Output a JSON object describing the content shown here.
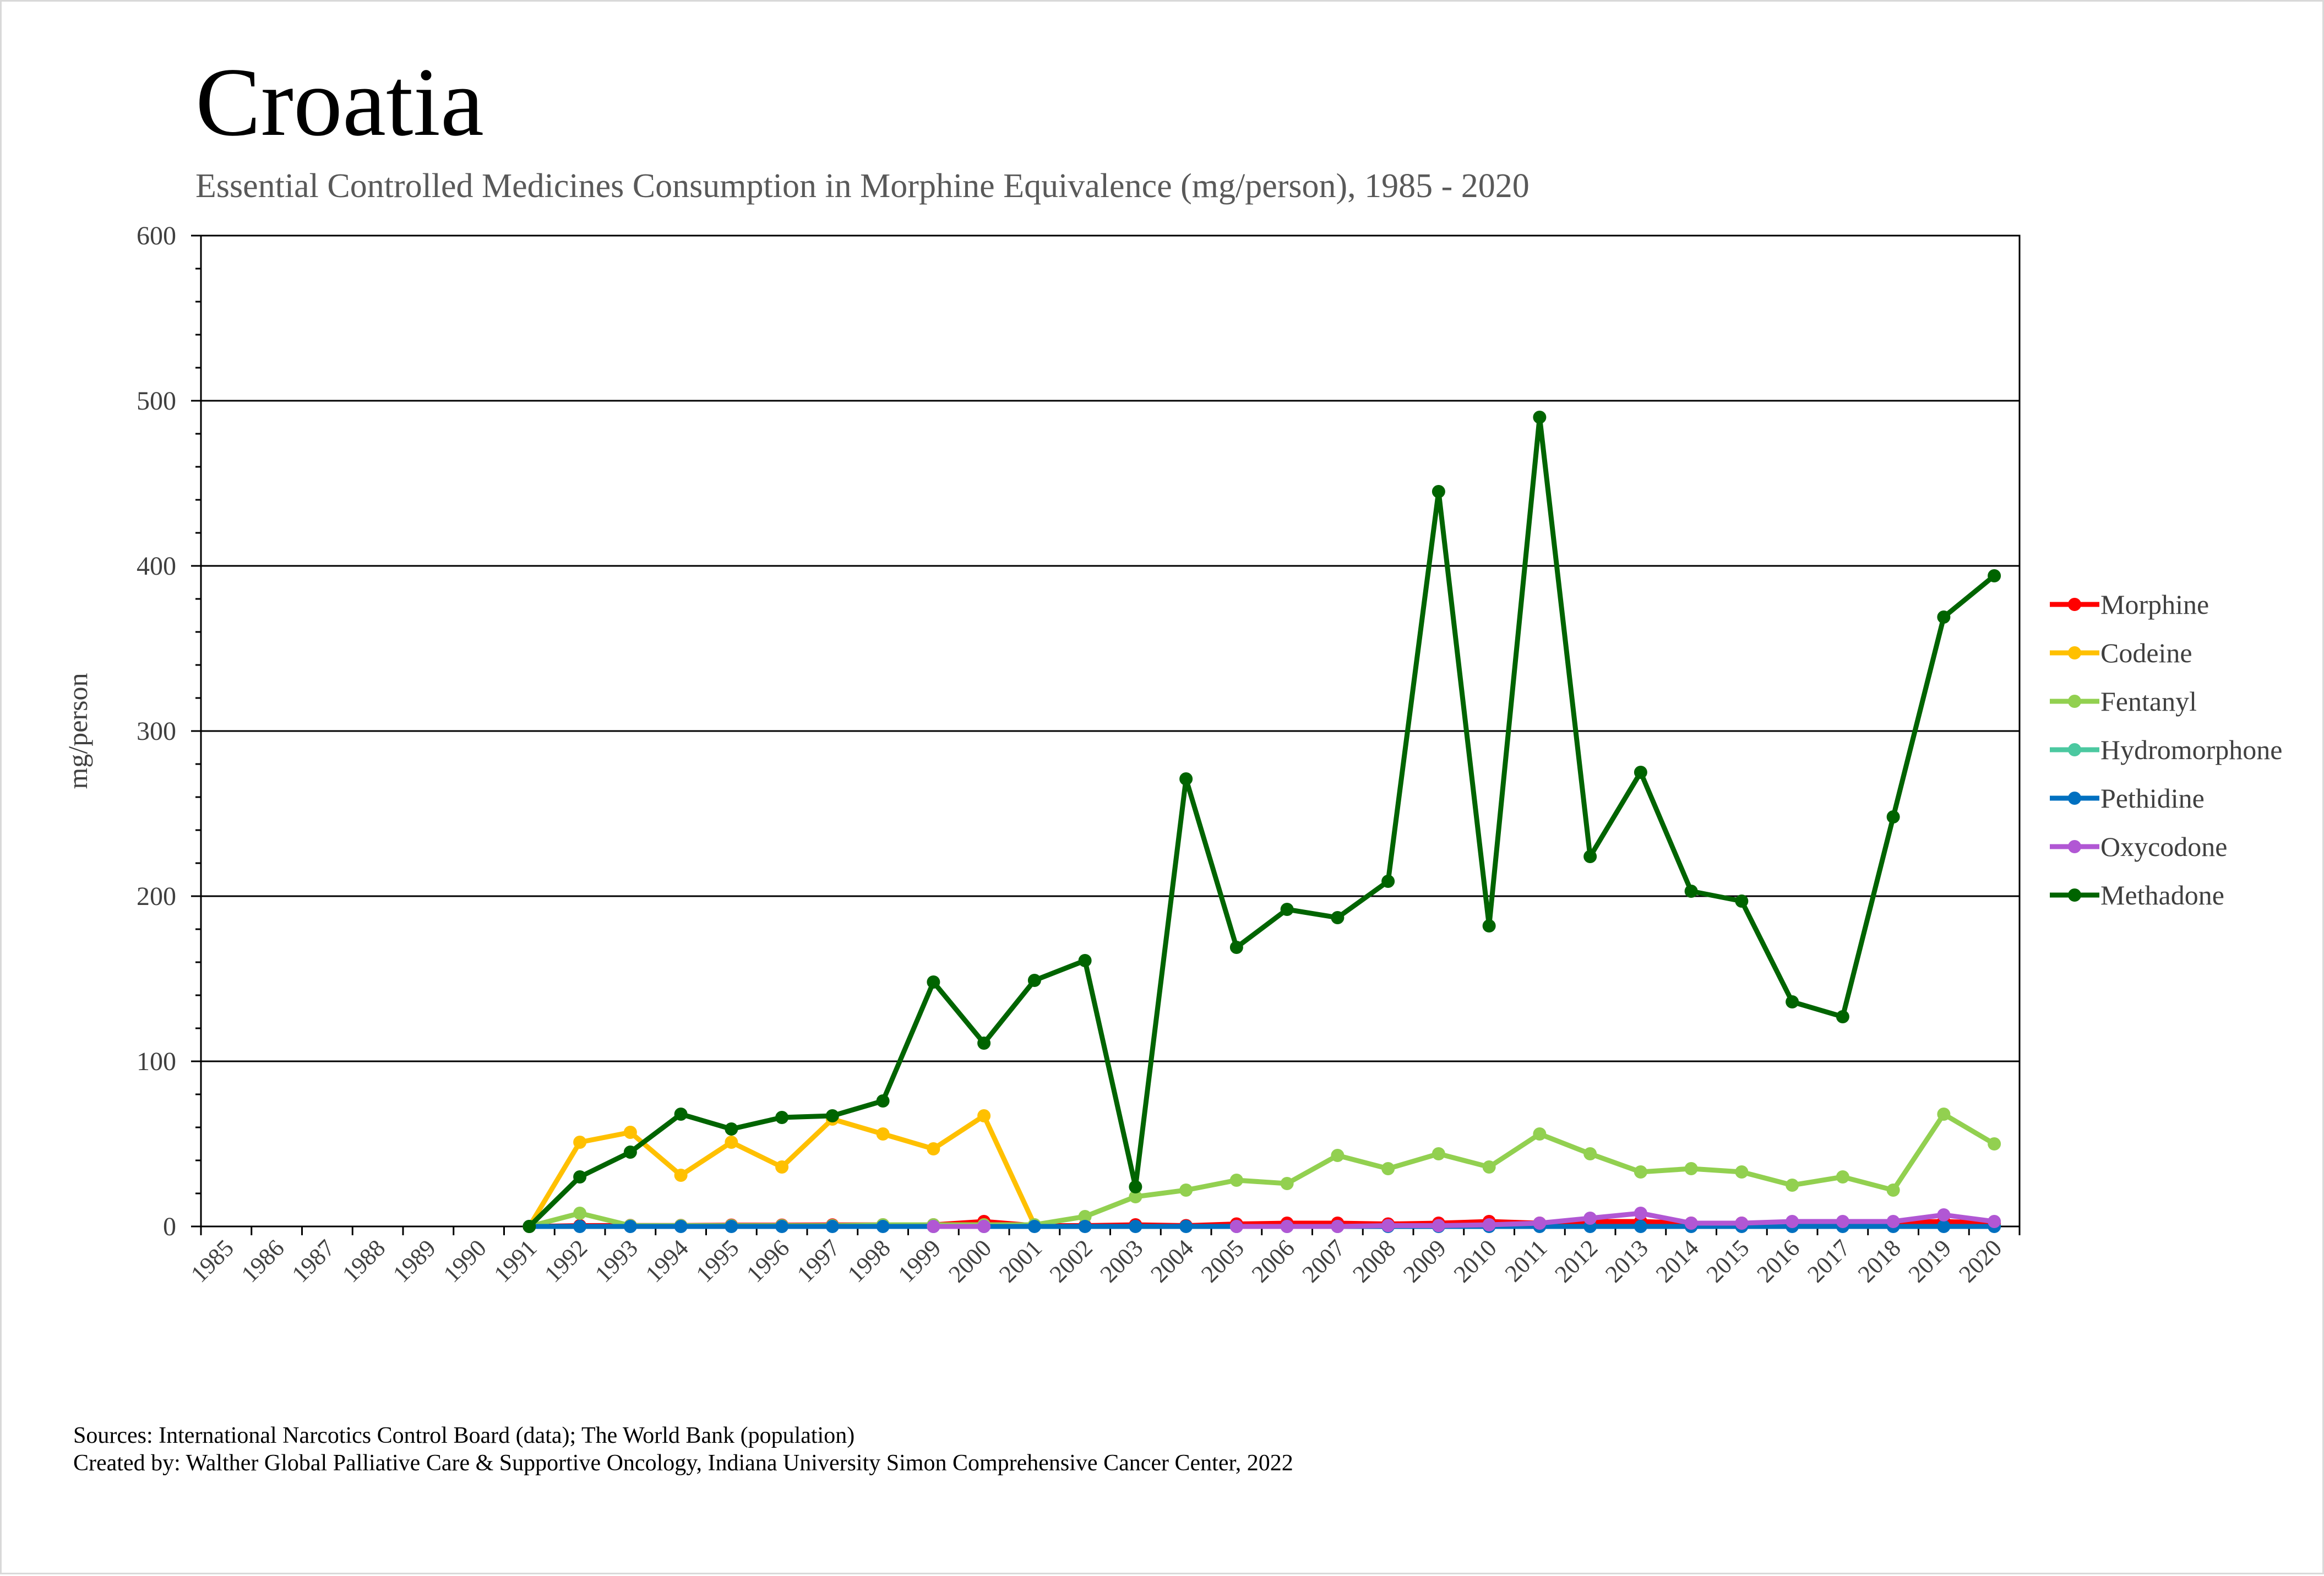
{
  "title": "Croatia",
  "subtitle": "Essential Controlled Medicines Consumption in Morphine Equivalence (mg/person), 1985 - 2020",
  "footer": {
    "sources": "Sources: International Narcotics Control Board (data); The World Bank (population)",
    "created_by": "Created by: Walther Global Palliative Care & Supportive Oncology, Indiana University Simon Comprehensive Cancer Center, 2022"
  },
  "chart_data": {
    "type": "line",
    "title": "Croatia",
    "subtitle": "Essential Controlled Medicines Consumption in Morphine Equivalence (mg/person), 1985 - 2020",
    "xlabel": "",
    "ylabel": "mg/person",
    "ylim": [
      0,
      600
    ],
    "yticks": [
      "0",
      "100",
      "200",
      "300",
      "400",
      "500",
      "600"
    ],
    "grid": true,
    "legend_position": "right",
    "categories": [
      "1985",
      "1986",
      "1987",
      "1988",
      "1989",
      "1990",
      "1991",
      "1992",
      "1993",
      "1994",
      "1995",
      "1996",
      "1997",
      "1998",
      "1999",
      "2000",
      "2001",
      "2002",
      "2003",
      "2004",
      "2005",
      "2006",
      "2007",
      "2008",
      "2009",
      "2010",
      "2011",
      "2012",
      "2013",
      "2014",
      "2015",
      "2016",
      "2017",
      "2018",
      "2019",
      "2020"
    ],
    "series": [
      {
        "name": "Morphine",
        "color": "#ff0000",
        "values": [
          null,
          null,
          null,
          null,
          null,
          null,
          0,
          0.5,
          0.6,
          0.6,
          0.8,
          0.8,
          0.9,
          1,
          1,
          3,
          0.5,
          0.5,
          1,
          0.5,
          1.5,
          2,
          2,
          1.5,
          2,
          3,
          2,
          3,
          3,
          2,
          2,
          2,
          2,
          2.5,
          3,
          2
        ]
      },
      {
        "name": "Codeine",
        "color": "#ffc000",
        "values": [
          null,
          null,
          null,
          null,
          null,
          null,
          0,
          51,
          57,
          31,
          51,
          36,
          65,
          56,
          47,
          67,
          1,
          null,
          null,
          null,
          null,
          null,
          null,
          null,
          null,
          null,
          null,
          null,
          null,
          null,
          null,
          null,
          null,
          null,
          null,
          null
        ]
      },
      {
        "name": "Fentanyl",
        "color": "#92d050",
        "values": [
          null,
          null,
          null,
          null,
          null,
          null,
          0,
          8,
          0.5,
          0.5,
          0.5,
          0.5,
          0.5,
          1,
          1,
          1,
          1,
          6,
          18,
          22,
          28,
          26,
          43,
          35,
          44,
          36,
          56,
          44,
          33,
          35,
          33,
          25,
          30,
          22,
          68,
          50
        ]
      },
      {
        "name": "Hydromorphone",
        "color": "#4bc8a0",
        "values": [
          null,
          null,
          null,
          null,
          null,
          null,
          null,
          null,
          null,
          null,
          null,
          null,
          null,
          null,
          null,
          null,
          null,
          null,
          null,
          null,
          null,
          null,
          null,
          null,
          null,
          null,
          null,
          null,
          null,
          null,
          null,
          null,
          null,
          null,
          null,
          null
        ]
      },
      {
        "name": "Pethidine",
        "color": "#0070c0",
        "values": [
          null,
          null,
          null,
          null,
          null,
          null,
          0,
          0,
          0,
          0,
          0,
          0,
          0,
          0,
          0,
          0,
          0,
          0,
          0,
          0,
          0,
          0,
          0,
          0,
          0,
          0,
          0,
          0,
          0,
          0,
          0,
          0,
          0,
          0,
          0,
          0
        ]
      },
      {
        "name": "Oxycodone",
        "color": "#b157d4",
        "values": [
          null,
          null,
          null,
          null,
          null,
          null,
          null,
          null,
          null,
          null,
          null,
          null,
          null,
          null,
          0,
          0,
          null,
          null,
          null,
          null,
          0,
          0,
          0,
          0.5,
          0.5,
          1,
          2,
          5,
          8,
          2,
          2,
          3,
          3,
          3,
          7,
          3
        ]
      },
      {
        "name": "Methadone",
        "color": "#006400",
        "values": [
          null,
          null,
          null,
          null,
          null,
          null,
          0,
          30,
          45,
          68,
          59,
          66,
          67,
          76,
          148,
          111,
          149,
          161,
          24,
          271,
          169,
          192,
          187,
          209,
          445,
          182,
          490,
          224,
          275,
          203,
          197,
          136,
          127,
          248,
          369,
          394
        ]
      }
    ]
  }
}
